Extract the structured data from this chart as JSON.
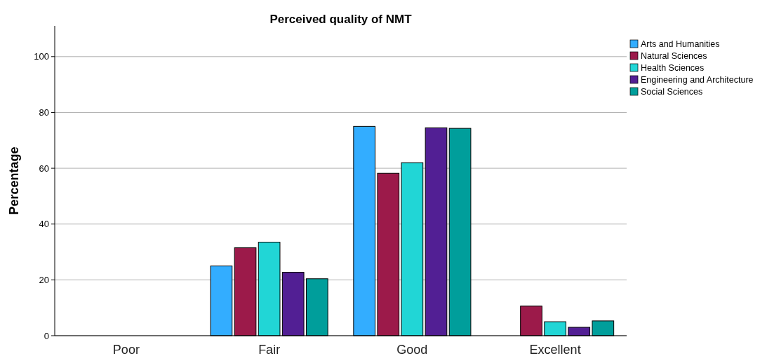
{
  "chart_data": {
    "type": "bar",
    "title": "Perceived quality of NMT",
    "ylabel": "Percentage",
    "categories": [
      "Poor",
      "Fair",
      "Good",
      "Excellent"
    ],
    "series": [
      {
        "name": "Arts and Humanities",
        "color": "#33adff",
        "values": [
          0,
          25,
          75,
          0
        ]
      },
      {
        "name": "Natural Sciences",
        "color": "#9c1a4a",
        "values": [
          0,
          31.5,
          58.2,
          10.6
        ]
      },
      {
        "name": "Health Sciences",
        "color": "#21d6d6",
        "values": [
          0,
          33.5,
          62,
          5
        ]
      },
      {
        "name": "Engineering and Architecture",
        "color": "#521f94",
        "values": [
          0,
          22.7,
          74.5,
          3
        ]
      },
      {
        "name": "Social Sciences",
        "color": "#009e9b",
        "values": [
          0,
          20.4,
          74.3,
          5.3
        ]
      }
    ],
    "ylim": [
      0,
      111
    ],
    "yticks": [
      0,
      20,
      40,
      60,
      80,
      100
    ],
    "grid": "y",
    "legend": "top right"
  }
}
